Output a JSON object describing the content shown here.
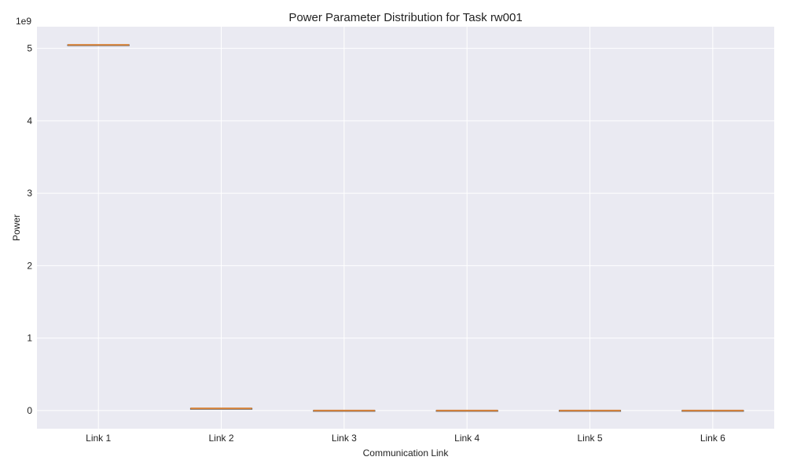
{
  "chart_data": {
    "type": "box",
    "title": "Power Parameter Distribution for Task rw001",
    "xlabel": "Communication Link",
    "ylabel": "Power",
    "y_offset_label": "1e9",
    "y_scale_factor": 1000000000,
    "ylim": [
      -250000000,
      5300000000
    ],
    "yticks": [
      0,
      1,
      2,
      3,
      4,
      5
    ],
    "grid": true,
    "colors": {
      "background": "#eaeaf2",
      "grid": "#ffffff",
      "median": "#d6833b",
      "box_edge": "#444444"
    },
    "categories": [
      "Link 1",
      "Link 2",
      "Link 3",
      "Link 4",
      "Link 5",
      "Link 6"
    ],
    "boxes": [
      {
        "category": "Link 1",
        "min": 5050000000,
        "q1": 5050000000,
        "median": 5050000000,
        "q3": 5050000000,
        "max": 5050000000
      },
      {
        "category": "Link 2",
        "min": 30000000,
        "q1": 30000000,
        "median": 30000000,
        "q3": 30000000,
        "max": 30000000
      },
      {
        "category": "Link 3",
        "min": 1000000,
        "q1": 1000000,
        "median": 1000000,
        "q3": 1000000,
        "max": 1000000
      },
      {
        "category": "Link 4",
        "min": 1000000,
        "q1": 1000000,
        "median": 1000000,
        "q3": 1000000,
        "max": 1000000
      },
      {
        "category": "Link 5",
        "min": 1000000,
        "q1": 1000000,
        "median": 1000000,
        "q3": 1000000,
        "max": 1000000
      },
      {
        "category": "Link 6",
        "min": 1000000,
        "q1": 1000000,
        "median": 1000000,
        "q3": 1000000,
        "max": 1000000
      }
    ]
  }
}
